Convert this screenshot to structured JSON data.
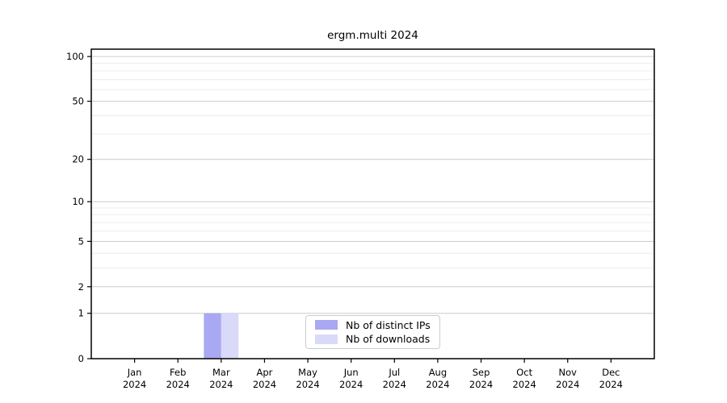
{
  "chart_data": {
    "type": "bar",
    "title": "ergm.multi 2024",
    "categories": [
      "Jan 2024",
      "Feb 2024",
      "Mar 2024",
      "Apr 2024",
      "May 2024",
      "Jun 2024",
      "Jul 2024",
      "Aug 2024",
      "Sep 2024",
      "Oct 2024",
      "Nov 2024",
      "Dec 2024"
    ],
    "series": [
      {
        "name": "Nb of distinct IPs",
        "color": "#a8a8f3",
        "values": [
          0,
          0,
          1,
          0,
          0,
          0,
          0,
          0,
          0,
          0,
          0,
          0
        ]
      },
      {
        "name": "Nb of downloads",
        "color": "#d9d9f8",
        "values": [
          0,
          0,
          1,
          0,
          0,
          0,
          0,
          0,
          0,
          0,
          0,
          0
        ]
      }
    ],
    "xlabel": "",
    "ylabel": "",
    "yscale": "log1p",
    "ylim": [
      0,
      112
    ],
    "yticks": [
      0,
      1,
      2,
      5,
      10,
      20,
      50,
      100
    ],
    "yticks_minor": [
      3,
      4,
      6,
      7,
      8,
      9,
      30,
      40,
      60,
      70,
      80,
      90
    ],
    "grid": "horizontal",
    "legend_position": "inside-bottom-center"
  },
  "colors": {
    "axis": "#000000",
    "tick_text": "#000000",
    "grid_major": "#cccccc",
    "grid_minor": "#ececec",
    "legend_border": "#cccccc",
    "background": "#ffffff"
  }
}
